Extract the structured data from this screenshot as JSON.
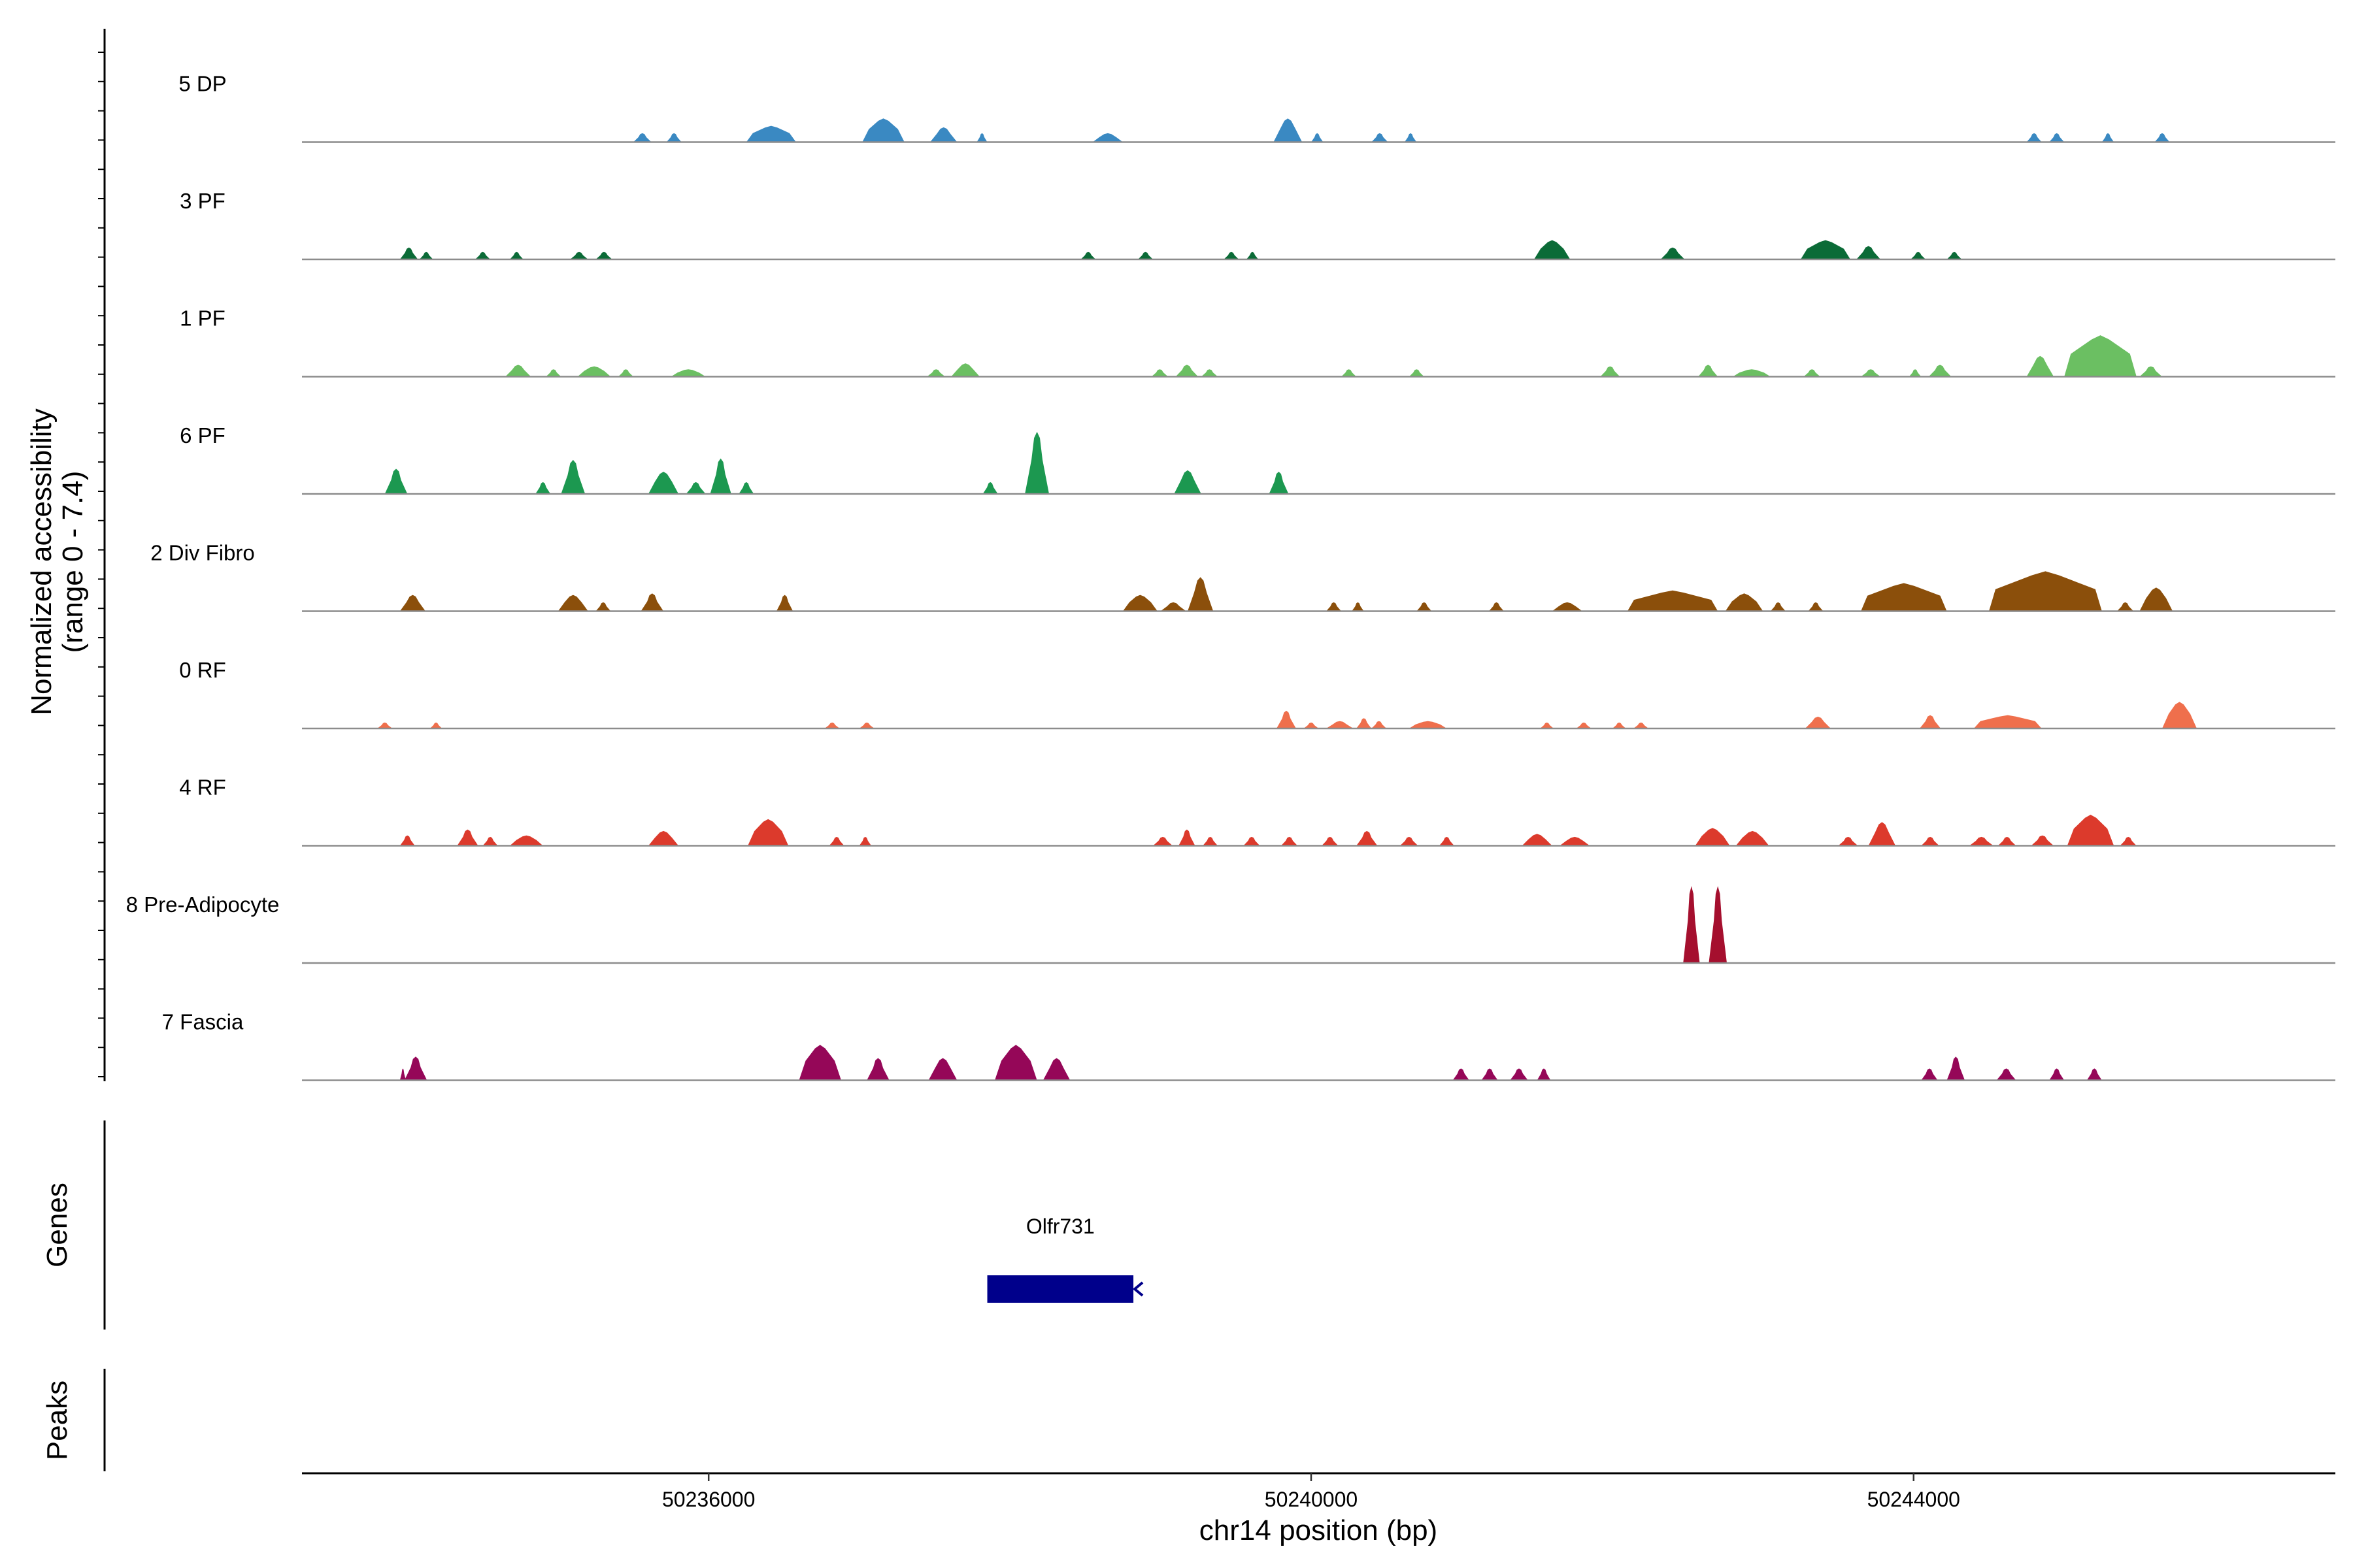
{
  "chart_data": {
    "type": "area",
    "title": "",
    "ylabel": "Normalized accessibility",
    "ylabel_sub": "(range 0 - 7.4)",
    "y_range": [
      0,
      7.4
    ],
    "xlabel": "chr14 position (bp)",
    "chromosome": "chr14",
    "xlim": [
      50233300,
      50246800
    ],
    "x_ticks": [
      50236000,
      50240000,
      50244000
    ],
    "x_tick_labels": [
      "50236000",
      "50240000",
      "50244000"
    ],
    "panel_titles": {
      "genes": "Genes",
      "peaks": "Peaks"
    },
    "tracks": [
      {
        "name": "5 DP",
        "color": "#3a89c2",
        "peaks": [
          [
            50235500,
            50235620,
            0.6
          ],
          [
            50235720,
            50235820,
            0.6
          ],
          [
            50236250,
            50236580,
            1.1
          ],
          [
            50237020,
            50237300,
            1.6
          ],
          [
            50237470,
            50237650,
            1.0
          ],
          [
            50237780,
            50237850,
            0.6
          ],
          [
            50238550,
            50238750,
            0.6
          ],
          [
            50239750,
            50239940,
            1.6
          ],
          [
            50240000,
            50240080,
            0.6
          ],
          [
            50240400,
            50240510,
            0.6
          ],
          [
            50240620,
            50240700,
            0.6
          ],
          [
            50244750,
            50244850,
            0.6
          ],
          [
            50244900,
            50245000,
            0.6
          ],
          [
            50245250,
            50245330,
            0.6
          ],
          [
            50245600,
            50245700,
            0.6
          ]
        ]
      },
      {
        "name": "3 PF",
        "color": "#0b6b37",
        "peaks": [
          [
            50233950,
            50234070,
            0.8
          ],
          [
            50234080,
            50234170,
            0.5
          ],
          [
            50234450,
            50234550,
            0.5
          ],
          [
            50234680,
            50234770,
            0.5
          ],
          [
            50235080,
            50235200,
            0.5
          ],
          [
            50235250,
            50235360,
            0.5
          ],
          [
            50238470,
            50238570,
            0.5
          ],
          [
            50238850,
            50238950,
            0.5
          ],
          [
            50239420,
            50239520,
            0.5
          ],
          [
            50239570,
            50239650,
            0.5
          ],
          [
            50241480,
            50241720,
            1.3
          ],
          [
            50242320,
            50242480,
            0.8
          ],
          [
            50243250,
            50243580,
            1.3
          ],
          [
            50243620,
            50243780,
            0.9
          ],
          [
            50243980,
            50244080,
            0.5
          ],
          [
            50244220,
            50244320,
            0.5
          ]
        ]
      },
      {
        "name": "1 PF",
        "color": "#6bbf62",
        "peaks": [
          [
            50234650,
            50234820,
            0.8
          ],
          [
            50234920,
            50235020,
            0.5
          ],
          [
            50235130,
            50235350,
            0.7
          ],
          [
            50235400,
            50235500,
            0.5
          ],
          [
            50235750,
            50235980,
            0.5
          ],
          [
            50237450,
            50237570,
            0.5
          ],
          [
            50237610,
            50237800,
            0.9
          ],
          [
            50238940,
            50239050,
            0.5
          ],
          [
            50239100,
            50239250,
            0.8
          ],
          [
            50239270,
            50239380,
            0.5
          ],
          [
            50240200,
            50240300,
            0.5
          ],
          [
            50240650,
            50240750,
            0.5
          ],
          [
            50241920,
            50242050,
            0.7
          ],
          [
            50242570,
            50242700,
            0.8
          ],
          [
            50242800,
            50243050,
            0.5
          ],
          [
            50243270,
            50243380,
            0.5
          ],
          [
            50243650,
            50243780,
            0.5
          ],
          [
            50243970,
            50244050,
            0.5
          ],
          [
            50244100,
            50244250,
            0.8
          ],
          [
            50244750,
            50244930,
            1.4
          ],
          [
            50245000,
            50245480,
            2.8
          ],
          [
            50245500,
            50245650,
            0.7
          ]
        ]
      },
      {
        "name": "6 PF",
        "color": "#1c9850",
        "peaks": [
          [
            50233850,
            50234000,
            1.7
          ],
          [
            50234850,
            50234950,
            0.8
          ],
          [
            50235020,
            50235180,
            2.3
          ],
          [
            50235600,
            50235800,
            1.5
          ],
          [
            50235850,
            50235980,
            0.8
          ],
          [
            50236010,
            50236150,
            2.4
          ],
          [
            50236200,
            50236300,
            0.8
          ],
          [
            50237820,
            50237920,
            0.8
          ],
          [
            50238100,
            50238260,
            4.2
          ],
          [
            50239090,
            50239270,
            1.6
          ],
          [
            50239720,
            50239850,
            1.5
          ]
        ]
      },
      {
        "name": "2 Div Fibro",
        "color": "#8b4f0b",
        "peaks": [
          [
            50233950,
            50234120,
            1.1
          ],
          [
            50235000,
            50235200,
            1.1
          ],
          [
            50235250,
            50235350,
            0.6
          ],
          [
            50235550,
            50235700,
            1.2
          ],
          [
            50236450,
            50236560,
            1.1
          ],
          [
            50238750,
            50238980,
            1.1
          ],
          [
            50239000,
            50239170,
            0.6
          ],
          [
            50239180,
            50239350,
            2.3
          ],
          [
            50240100,
            50240200,
            0.6
          ],
          [
            50240270,
            50240350,
            0.6
          ],
          [
            50240700,
            50240800,
            0.6
          ],
          [
            50241180,
            50241280,
            0.6
          ],
          [
            50241600,
            50241800,
            0.6
          ],
          [
            50242100,
            50242700,
            1.4
          ],
          [
            50242750,
            50243000,
            1.2
          ],
          [
            50243050,
            50243150,
            0.6
          ],
          [
            50243300,
            50243400,
            0.6
          ],
          [
            50243650,
            50244220,
            1.9
          ],
          [
            50244500,
            50245250,
            2.7
          ],
          [
            50245350,
            50245460,
            0.6
          ],
          [
            50245500,
            50245720,
            1.6
          ]
        ]
      },
      {
        "name": "0 RF",
        "color": "#ef6f4c",
        "peaks": [
          [
            50233800,
            50233900,
            0.4
          ],
          [
            50234150,
            50234230,
            0.4
          ],
          [
            50236770,
            50236870,
            0.4
          ],
          [
            50237000,
            50237100,
            0.4
          ],
          [
            50239770,
            50239900,
            1.2
          ],
          [
            50239950,
            50240050,
            0.4
          ],
          [
            50240100,
            50240280,
            0.5
          ],
          [
            50240300,
            50240400,
            0.7
          ],
          [
            50240400,
            50240500,
            0.5
          ],
          [
            50240650,
            50240900,
            0.5
          ],
          [
            50241520,
            50241610,
            0.4
          ],
          [
            50241760,
            50241860,
            0.4
          ],
          [
            50242000,
            50242090,
            0.4
          ],
          [
            50242140,
            50242240,
            0.4
          ],
          [
            50243280,
            50243450,
            0.8
          ],
          [
            50244040,
            50244180,
            0.9
          ],
          [
            50244400,
            50244850,
            0.9
          ],
          [
            50245650,
            50245880,
            1.8
          ]
        ]
      },
      {
        "name": "4 RF",
        "color": "#dc3a2c",
        "peaks": [
          [
            50233950,
            50234050,
            0.7
          ],
          [
            50234330,
            50234470,
            1.1
          ],
          [
            50234500,
            50234600,
            0.6
          ],
          [
            50234680,
            50234900,
            0.7
          ],
          [
            50235600,
            50235800,
            1.0
          ],
          [
            50236260,
            50236530,
            1.8
          ],
          [
            50236800,
            50236900,
            0.6
          ],
          [
            50237000,
            50237080,
            0.6
          ],
          [
            50238950,
            50239080,
            0.6
          ],
          [
            50239120,
            50239230,
            1.1
          ],
          [
            50239280,
            50239380,
            0.6
          ],
          [
            50239550,
            50239660,
            0.6
          ],
          [
            50239800,
            50239910,
            0.6
          ],
          [
            50240070,
            50240180,
            0.6
          ],
          [
            50240300,
            50240440,
            1.0
          ],
          [
            50240590,
            50240710,
            0.6
          ],
          [
            50240850,
            50240950,
            0.6
          ],
          [
            50241400,
            50241600,
            0.8
          ],
          [
            50241650,
            50241850,
            0.6
          ],
          [
            50242550,
            50242780,
            1.2
          ],
          [
            50242820,
            50243040,
            1.0
          ],
          [
            50243500,
            50243630,
            0.6
          ],
          [
            50243700,
            50243880,
            1.6
          ],
          [
            50244050,
            50244170,
            0.6
          ],
          [
            50244370,
            50244530,
            0.6
          ],
          [
            50244560,
            50244680,
            0.6
          ],
          [
            50244780,
            50244930,
            0.7
          ],
          [
            50245020,
            50245330,
            2.1
          ],
          [
            50245370,
            50245480,
            0.6
          ]
        ]
      },
      {
        "name": "8 Pre-Adipocyte",
        "color": "#a50f2e",
        "peaks": [
          [
            50242470,
            50242580,
            5.2
          ],
          [
            50242640,
            50242760,
            5.2
          ]
        ]
      },
      {
        "name": "7 Fascia",
        "color": "#950758",
        "peaks": [
          [
            50233950,
            50233990,
            0.8
          ],
          [
            50233980,
            50234130,
            1.6
          ],
          [
            50236600,
            50236880,
            2.4
          ],
          [
            50237050,
            50237200,
            1.5
          ],
          [
            50237460,
            50237650,
            1.5
          ],
          [
            50237900,
            50238180,
            2.4
          ],
          [
            50238220,
            50238400,
            1.5
          ],
          [
            50240940,
            50241050,
            0.8
          ],
          [
            50241130,
            50241240,
            0.8
          ],
          [
            50241320,
            50241440,
            0.8
          ],
          [
            50241500,
            50241590,
            0.8
          ],
          [
            50244050,
            50244160,
            0.8
          ],
          [
            50244220,
            50244340,
            1.6
          ],
          [
            50244550,
            50244680,
            0.8
          ],
          [
            50244900,
            50245000,
            0.8
          ],
          [
            50245150,
            50245250,
            0.8
          ]
        ]
      }
    ],
    "genes": [
      {
        "name": "Olfr731",
        "start": 50237850,
        "end": 50238820,
        "strand": "-"
      }
    ],
    "peaks_track": []
  }
}
